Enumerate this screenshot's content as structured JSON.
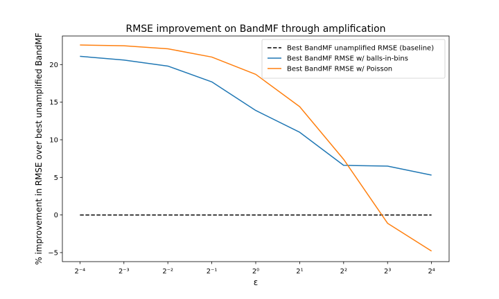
{
  "chart_data": {
    "type": "line",
    "title": "RMSE improvement on BandMF through amplification",
    "xlabel": "ε",
    "ylabel": "% improvement in RMSE over best unamplified BandMF",
    "x_scale": "log2",
    "x_exponents": [
      -4,
      -3,
      -2,
      -1,
      0,
      1,
      2,
      3,
      4
    ],
    "x_tick_labels": [
      "2⁻⁴",
      "2⁻³",
      "2⁻²",
      "2⁻¹",
      "2⁰",
      "2¹",
      "2²",
      "2³",
      "2⁴"
    ],
    "y_ticks": [
      -5,
      0,
      5,
      10,
      15,
      20
    ],
    "y_tick_labels": [
      "−5",
      "0",
      "5",
      "10",
      "15",
      "20"
    ],
    "xlim": [
      -4.4,
      4.4
    ],
    "ylim": [
      -6.2,
      23.8
    ],
    "grid": false,
    "legend_position": "top-right",
    "series": [
      {
        "name": "Best BandMF unamplified RMSE (baseline)",
        "color": "#000000",
        "dash": "dashed",
        "values": [
          0,
          0,
          0,
          0,
          0,
          0,
          0,
          0,
          0
        ]
      },
      {
        "name": "Best BandMF RMSE w/ balls-in-bins",
        "color": "#1f77b4",
        "dash": "solid",
        "values": [
          21.1,
          20.6,
          19.8,
          17.7,
          13.9,
          11.0,
          6.6,
          6.5,
          5.3
        ]
      },
      {
        "name": "Best BandMF RMSE w/ Poisson",
        "color": "#ff7f0e",
        "dash": "solid",
        "values": [
          22.6,
          22.5,
          22.1,
          21.0,
          18.7,
          14.4,
          7.4,
          -1.1,
          -4.8
        ]
      }
    ]
  }
}
